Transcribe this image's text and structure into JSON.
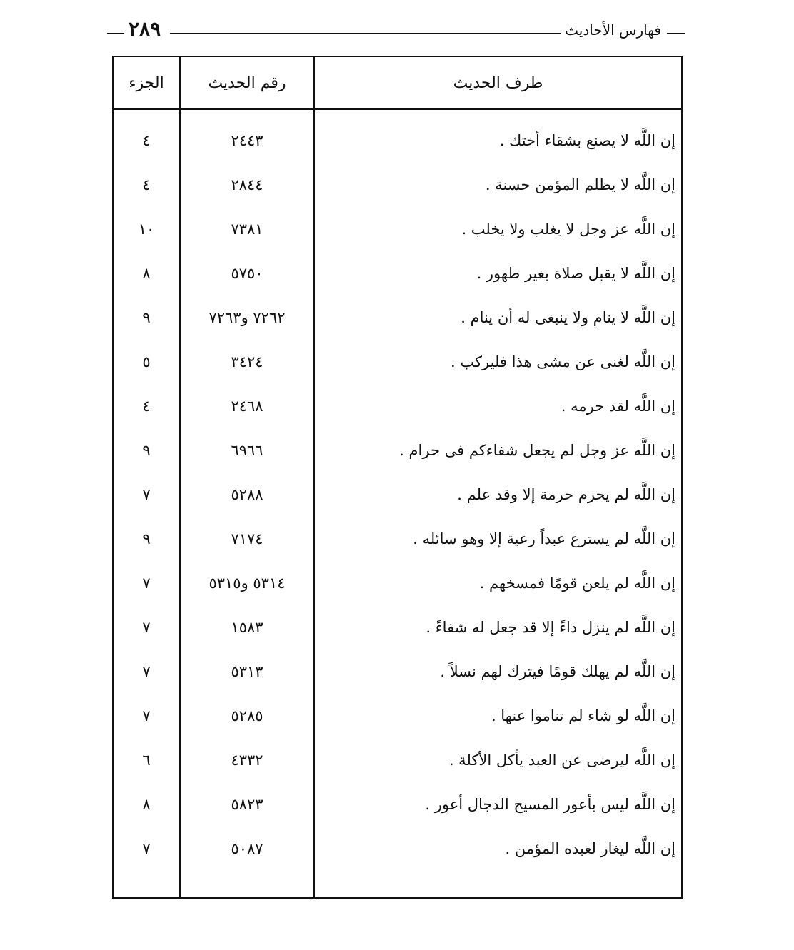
{
  "header": {
    "title": "فهارس الأحاديث",
    "page_number": "٢٨٩"
  },
  "table": {
    "columns": [
      "طرف الحديث",
      "رقم الحديث",
      "الجزء"
    ],
    "rows": [
      {
        "text": "إن اللَّه لا يصنع بشقاء أختك .",
        "number": "٢٤٤٣",
        "volume": "٤"
      },
      {
        "text": "إن اللَّه لا يظلم المؤمن حسنة .",
        "number": "٢٨٤٤",
        "volume": "٤"
      },
      {
        "text": "إن اللَّه عز وجل لا يغلب ولا يخلب .",
        "number": "٧٣٨١",
        "volume": "١٠"
      },
      {
        "text": "إن اللَّه لا يقبل صلاة بغير طهور .",
        "number": "٥٧٥٠",
        "volume": "٨"
      },
      {
        "text": "إن اللَّه لا ينام ولا ينبغى له أن ينام .",
        "number": "٧٢٦٢ و٧٢٦٣",
        "volume": "٩"
      },
      {
        "text": "إن اللَّه لغنى عن مشى هذا فليركب .",
        "number": "٣٤٢٤",
        "volume": "٥"
      },
      {
        "text": "إن اللَّه لقد حرمه .",
        "number": "٢٤٦٨",
        "volume": "٤"
      },
      {
        "text": "إن اللَّه عز وجل لم يجعل شفاءكم فى حرام .",
        "number": "٦٩٦٦",
        "volume": "٩"
      },
      {
        "text": "إن اللَّه لم يحرم حرمة إلا وقد علم .",
        "number": "٥٢٨٨",
        "volume": "٧"
      },
      {
        "text": "إن اللَّه لم يسترع عبداً رعية إلا وهو سائله .",
        "number": "٧١٧٤",
        "volume": "٩"
      },
      {
        "text": "إن اللَّه لم يلعن قومًا فمسخهم .",
        "number": "٥٣١٤ و٥٣١٥",
        "volume": "٧"
      },
      {
        "text": "إن اللَّه لم ينزل داءً إلا قد جعل له شفاءً .",
        "number": "١٥٨٣",
        "volume": "٧"
      },
      {
        "text": "إن اللَّه لم يهلك قومًا فيترك لهم نسلاً .",
        "number": "٥٣١٣",
        "volume": "٧"
      },
      {
        "text": "إن اللَّه لو شاء لم تناموا عنها .",
        "number": "٥٢٨٥",
        "volume": "٧"
      },
      {
        "text": "إن اللَّه ليرضى عن العبد يأكل الأكلة .",
        "number": "٤٣٣٢",
        "volume": "٦"
      },
      {
        "text": "إن اللَّه ليس بأعور المسيح الدجال أعور .",
        "number": "٥٨٢٣",
        "volume": "٨"
      },
      {
        "text": "إن اللَّه ليغار لعبده المؤمن .",
        "number": "٥٠٨٧",
        "volume": "٧"
      }
    ]
  }
}
